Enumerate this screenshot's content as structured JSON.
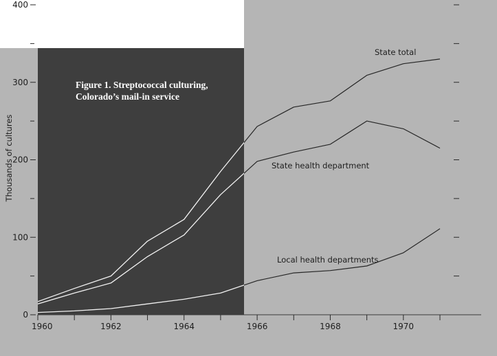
{
  "chart_data": {
    "type": "line",
    "title_lines": [
      "Figure 1.  Streptococcal culturing,",
      "Colorado’s  mail-in  service"
    ],
    "xlabel": "",
    "ylabel": "Thousands of cultures",
    "xlim": [
      1960,
      1971.8
    ],
    "ylim": [
      0,
      400
    ],
    "x_ticks": [
      1960,
      1962,
      1964,
      1966,
      1968,
      1970
    ],
    "y_ticks": [
      0,
      100,
      200,
      300,
      400
    ],
    "grid": false,
    "x": [
      1960,
      1961,
      1962,
      1963,
      1964,
      1965,
      1966,
      1967,
      1968,
      1969,
      1970,
      1971
    ],
    "series": [
      {
        "name": "State total",
        "values": [
          17,
          34,
          50,
          95,
          123,
          185,
          243,
          268,
          276,
          309,
          324,
          330
        ]
      },
      {
        "name": "State health department",
        "values": [
          14,
          28,
          41,
          75,
          103,
          155,
          198,
          210,
          220,
          250,
          240,
          215
        ]
      },
      {
        "name": "Local health departments",
        "values": [
          3,
          5,
          8,
          14,
          20,
          28,
          44,
          54,
          57,
          63,
          80,
          111
        ]
      }
    ],
    "colors": {
      "dark_panel": "#3e3e3e",
      "light_panel": "#b5b5b5",
      "line_on_dark": "#f2f2f2",
      "line_on_light": "#262626"
    }
  }
}
